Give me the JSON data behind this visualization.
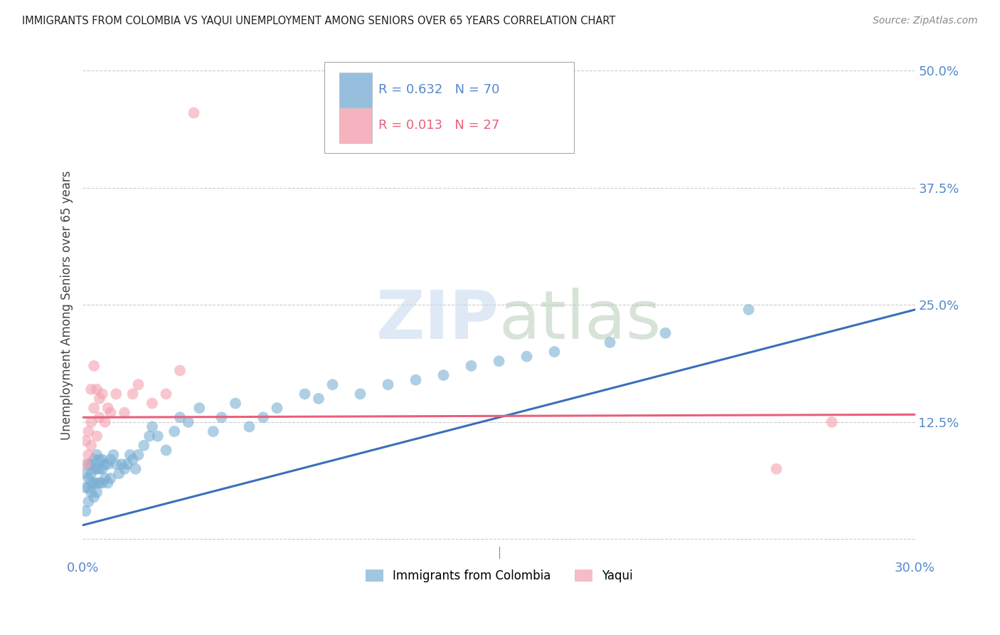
{
  "title": "IMMIGRANTS FROM COLOMBIA VS YAQUI UNEMPLOYMENT AMONG SENIORS OVER 65 YEARS CORRELATION CHART",
  "source": "Source: ZipAtlas.com",
  "ylabel": "Unemployment Among Seniors over 65 years",
  "xlim": [
    0.0,
    0.3
  ],
  "ylim": [
    -0.02,
    0.52
  ],
  "xticks": [
    0.0,
    0.05,
    0.1,
    0.15,
    0.2,
    0.25,
    0.3
  ],
  "xticklabels": [
    "0.0%",
    "",
    "",
    "",
    "",
    "",
    "30.0%"
  ],
  "ytick_positions": [
    0.0,
    0.125,
    0.25,
    0.375,
    0.5
  ],
  "ytick_labels": [
    "",
    "12.5%",
    "25.0%",
    "37.5%",
    "50.0%"
  ],
  "grid_color": "#cccccc",
  "background_color": "#ffffff",
  "legend_r1": "R = 0.632",
  "legend_n1": "N = 70",
  "legend_r2": "R = 0.013",
  "legend_n2": "N = 27",
  "blue_color": "#7bafd4",
  "pink_color": "#f4a0b0",
  "blue_line_color": "#3a6fba",
  "pink_line_color": "#e8607a",
  "label_color": "#5588cc",
  "colombia_scatter_x": [
    0.001,
    0.001,
    0.001,
    0.002,
    0.002,
    0.002,
    0.002,
    0.003,
    0.003,
    0.003,
    0.003,
    0.004,
    0.004,
    0.004,
    0.004,
    0.005,
    0.005,
    0.005,
    0.005,
    0.006,
    0.006,
    0.006,
    0.007,
    0.007,
    0.007,
    0.008,
    0.008,
    0.009,
    0.009,
    0.01,
    0.01,
    0.011,
    0.012,
    0.013,
    0.014,
    0.015,
    0.016,
    0.017,
    0.018,
    0.019,
    0.02,
    0.022,
    0.024,
    0.025,
    0.027,
    0.03,
    0.033,
    0.035,
    0.038,
    0.042,
    0.047,
    0.05,
    0.055,
    0.06,
    0.065,
    0.07,
    0.08,
    0.085,
    0.09,
    0.1,
    0.11,
    0.12,
    0.13,
    0.14,
    0.15,
    0.16,
    0.17,
    0.19,
    0.21,
    0.24
  ],
  "colombia_scatter_y": [
    0.03,
    0.055,
    0.07,
    0.04,
    0.055,
    0.065,
    0.08,
    0.05,
    0.06,
    0.07,
    0.08,
    0.045,
    0.06,
    0.075,
    0.085,
    0.05,
    0.06,
    0.075,
    0.09,
    0.06,
    0.075,
    0.085,
    0.06,
    0.075,
    0.085,
    0.065,
    0.08,
    0.06,
    0.08,
    0.065,
    0.085,
    0.09,
    0.08,
    0.07,
    0.08,
    0.075,
    0.08,
    0.09,
    0.085,
    0.075,
    0.09,
    0.1,
    0.11,
    0.12,
    0.11,
    0.095,
    0.115,
    0.13,
    0.125,
    0.14,
    0.115,
    0.13,
    0.145,
    0.12,
    0.13,
    0.14,
    0.155,
    0.15,
    0.165,
    0.155,
    0.165,
    0.17,
    0.175,
    0.185,
    0.19,
    0.195,
    0.2,
    0.21,
    0.22,
    0.245
  ],
  "yaqui_scatter_x": [
    0.001,
    0.001,
    0.002,
    0.002,
    0.003,
    0.003,
    0.003,
    0.004,
    0.004,
    0.005,
    0.005,
    0.006,
    0.006,
    0.007,
    0.008,
    0.009,
    0.01,
    0.012,
    0.015,
    0.018,
    0.02,
    0.025,
    0.03,
    0.035,
    0.04,
    0.25,
    0.27
  ],
  "yaqui_scatter_y": [
    0.08,
    0.105,
    0.09,
    0.115,
    0.1,
    0.125,
    0.16,
    0.14,
    0.185,
    0.11,
    0.16,
    0.13,
    0.15,
    0.155,
    0.125,
    0.14,
    0.135,
    0.155,
    0.135,
    0.155,
    0.165,
    0.145,
    0.155,
    0.18,
    0.455,
    0.075,
    0.125
  ],
  "blue_trend_x": [
    0.0,
    0.3
  ],
  "blue_trend_y": [
    0.015,
    0.245
  ],
  "pink_trend_x": [
    0.0,
    0.3
  ],
  "pink_trend_y": [
    0.13,
    0.133
  ],
  "watermark_zip": "ZIP",
  "watermark_atlas": "atlas",
  "watermark_color_zip": "#c8d8ee",
  "watermark_color_atlas": "#c8d8c8"
}
